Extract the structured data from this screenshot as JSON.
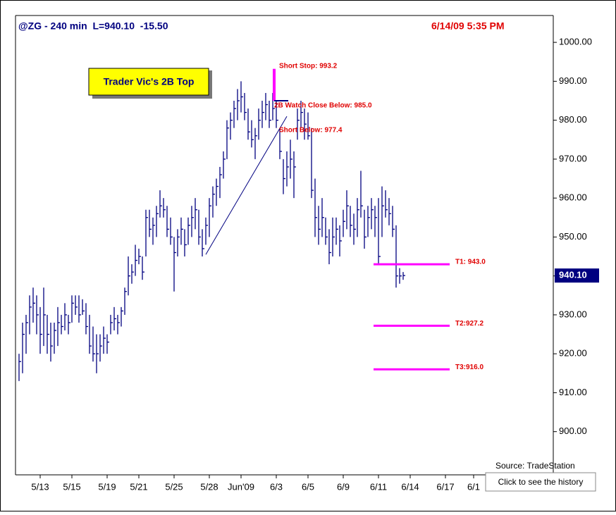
{
  "chart_data": {
    "type": "ohlc",
    "title": "@ZG - 240 min  L=940.10  -15.50",
    "timestamp": "6/14/09 5:35 PM",
    "callout": "Trader Vic's 2B Top",
    "source": "Source: TradeStation",
    "button": "Click to see the history",
    "color": "#000080",
    "x": [
      0,
      1,
      2,
      3,
      4,
      5,
      6,
      7,
      8,
      9,
      10,
      11,
      12,
      13,
      14,
      15,
      16,
      17,
      18,
      19,
      20,
      21,
      22,
      23,
      24,
      25,
      26,
      27,
      28,
      29,
      30,
      31,
      32,
      33,
      34,
      35,
      36,
      37,
      38,
      39,
      40,
      41,
      42,
      43,
      44,
      45,
      46,
      47,
      48,
      49,
      50,
      51,
      52,
      53,
      54,
      55,
      56,
      57,
      58,
      59,
      60,
      61,
      62,
      63,
      64,
      65,
      66,
      67,
      68,
      69,
      70,
      71,
      72,
      73,
      74,
      75,
      76,
      77,
      78,
      79,
      80,
      81,
      82,
      83,
      84,
      85,
      86,
      87,
      88,
      89,
      90,
      91,
      92,
      93,
      94,
      95,
      96,
      97,
      98,
      99,
      100,
      101,
      102,
      103,
      104,
      105,
      106,
      107,
      108,
      109
    ],
    "high": [
      920,
      928,
      930,
      935,
      937,
      935,
      932,
      937,
      930,
      928,
      928,
      932,
      930,
      933,
      930,
      935,
      935,
      935,
      934,
      933,
      930,
      927,
      925,
      925,
      927,
      925,
      930,
      932,
      930,
      932,
      937,
      945,
      943,
      948,
      947,
      945,
      957,
      957,
      955,
      958,
      962,
      960,
      958,
      955,
      950,
      952,
      955,
      952,
      955,
      958,
      960,
      957,
      952,
      955,
      960,
      963,
      965,
      968,
      972,
      980,
      982,
      985,
      988,
      990,
      987,
      983,
      980,
      978,
      983,
      985,
      987,
      985,
      987,
      985,
      978,
      970,
      972,
      975,
      972,
      983,
      985,
      983,
      982,
      978,
      965,
      958,
      960,
      955,
      952,
      955,
      955,
      953,
      957,
      962,
      958,
      956,
      960,
      967,
      957,
      958,
      960,
      958,
      960,
      963,
      962,
      960,
      958,
      953,
      942,
      941
    ],
    "low": [
      913,
      915,
      920,
      925,
      928,
      925,
      920,
      922,
      920,
      918,
      920,
      922,
      925,
      926,
      925,
      928,
      930,
      928,
      930,
      925,
      920,
      918,
      915,
      918,
      920,
      920,
      925,
      926,
      925,
      927,
      930,
      935,
      938,
      940,
      943,
      939,
      945,
      950,
      948,
      950,
      955,
      955,
      950,
      948,
      936,
      945,
      948,
      945,
      948,
      950,
      952,
      948,
      945,
      948,
      950,
      955,
      958,
      960,
      965,
      970,
      975,
      978,
      980,
      982,
      980,
      975,
      973,
      970,
      975,
      978,
      980,
      978,
      980,
      978,
      970,
      961,
      963,
      965,
      960,
      975,
      978,
      975,
      975,
      960,
      950,
      948,
      950,
      948,
      943,
      945,
      948,
      945,
      950,
      952,
      950,
      948,
      950,
      955,
      947,
      950,
      952,
      950,
      943,
      950,
      955,
      953,
      950,
      937,
      938,
      939
    ],
    "close": [
      918,
      925,
      928,
      932,
      933,
      930,
      925,
      930,
      925,
      922,
      926,
      928,
      927,
      930,
      928,
      933,
      932,
      930,
      931,
      927,
      922,
      920,
      920,
      922,
      924,
      923,
      928,
      929,
      928,
      931,
      936,
      940,
      941,
      944,
      945,
      941,
      955,
      952,
      953,
      956,
      958,
      957,
      952,
      950,
      946,
      950,
      952,
      948,
      953,
      955,
      957,
      950,
      947,
      953,
      958,
      961,
      963,
      966,
      970,
      978,
      980,
      983,
      985,
      986,
      982,
      977,
      975,
      976,
      980,
      982,
      984,
      980,
      983,
      980,
      972,
      965,
      968,
      970,
      968,
      980,
      982,
      979,
      976,
      962,
      955,
      952,
      955,
      950,
      946,
      950,
      952,
      949,
      954,
      958,
      953,
      952,
      957,
      958,
      950,
      955,
      957,
      955,
      945,
      958,
      957,
      956,
      952,
      940,
      940,
      940.1
    ],
    "xlim": [
      -1,
      151.6
    ],
    "xticks": [
      {
        "value": 6,
        "label": "5/13"
      },
      {
        "value": 15,
        "label": "5/15"
      },
      {
        "value": 25,
        "label": "5/19"
      },
      {
        "value": 34,
        "label": "5/21"
      },
      {
        "value": 44,
        "label": "5/25"
      },
      {
        "value": 54,
        "label": "5/28"
      },
      {
        "value": 63,
        "label": "Jun'09"
      },
      {
        "value": 73,
        "label": "6/3"
      },
      {
        "value": 82,
        "label": "6/5"
      },
      {
        "value": 92,
        "label": "6/9"
      },
      {
        "value": 102,
        "label": "6/11"
      },
      {
        "value": 111,
        "label": "6/14"
      },
      {
        "value": 121,
        "label": "6/17"
      },
      {
        "value": 129,
        "label": "6/1"
      }
    ],
    "ylim": [
      888.9,
      1006.9
    ],
    "yticks": [
      {
        "value": 900,
        "label": "900.00"
      },
      {
        "value": 910,
        "label": "910.00"
      },
      {
        "value": 920,
        "label": "920.00"
      },
      {
        "value": 930,
        "label": "930.00"
      },
      {
        "value": 940,
        "label": "940.00"
      },
      {
        "value": 950,
        "label": "950.00"
      },
      {
        "value": 960,
        "label": "960.00"
      },
      {
        "value": 970,
        "label": "970.00"
      },
      {
        "value": 980,
        "label": "980.00"
      },
      {
        "value": 990,
        "label": "990.00"
      },
      {
        "value": 1000,
        "label": "1000.00"
      }
    ],
    "last_price": {
      "value": 940.1,
      "label": "940.10"
    },
    "short_stop": {
      "value": 993.2,
      "label": "Short Stop: 993.2"
    },
    "watch": {
      "value": 985.0,
      "label": "2B Watch Close Below: 985.0"
    },
    "short_below": {
      "value": 977.4,
      "label": "Short Below: 977.4"
    },
    "targets": [
      {
        "value": 943.0,
        "label": "T1: 943.0"
      },
      {
        "value": 927.2,
        "label": "T2:927.2"
      },
      {
        "value": 916.0,
        "label": "T3:916.0"
      }
    ],
    "target_color": "#ff00ff",
    "trendline": {
      "x": [
        53,
        76
      ],
      "y": [
        945.5,
        981
      ]
    }
  }
}
